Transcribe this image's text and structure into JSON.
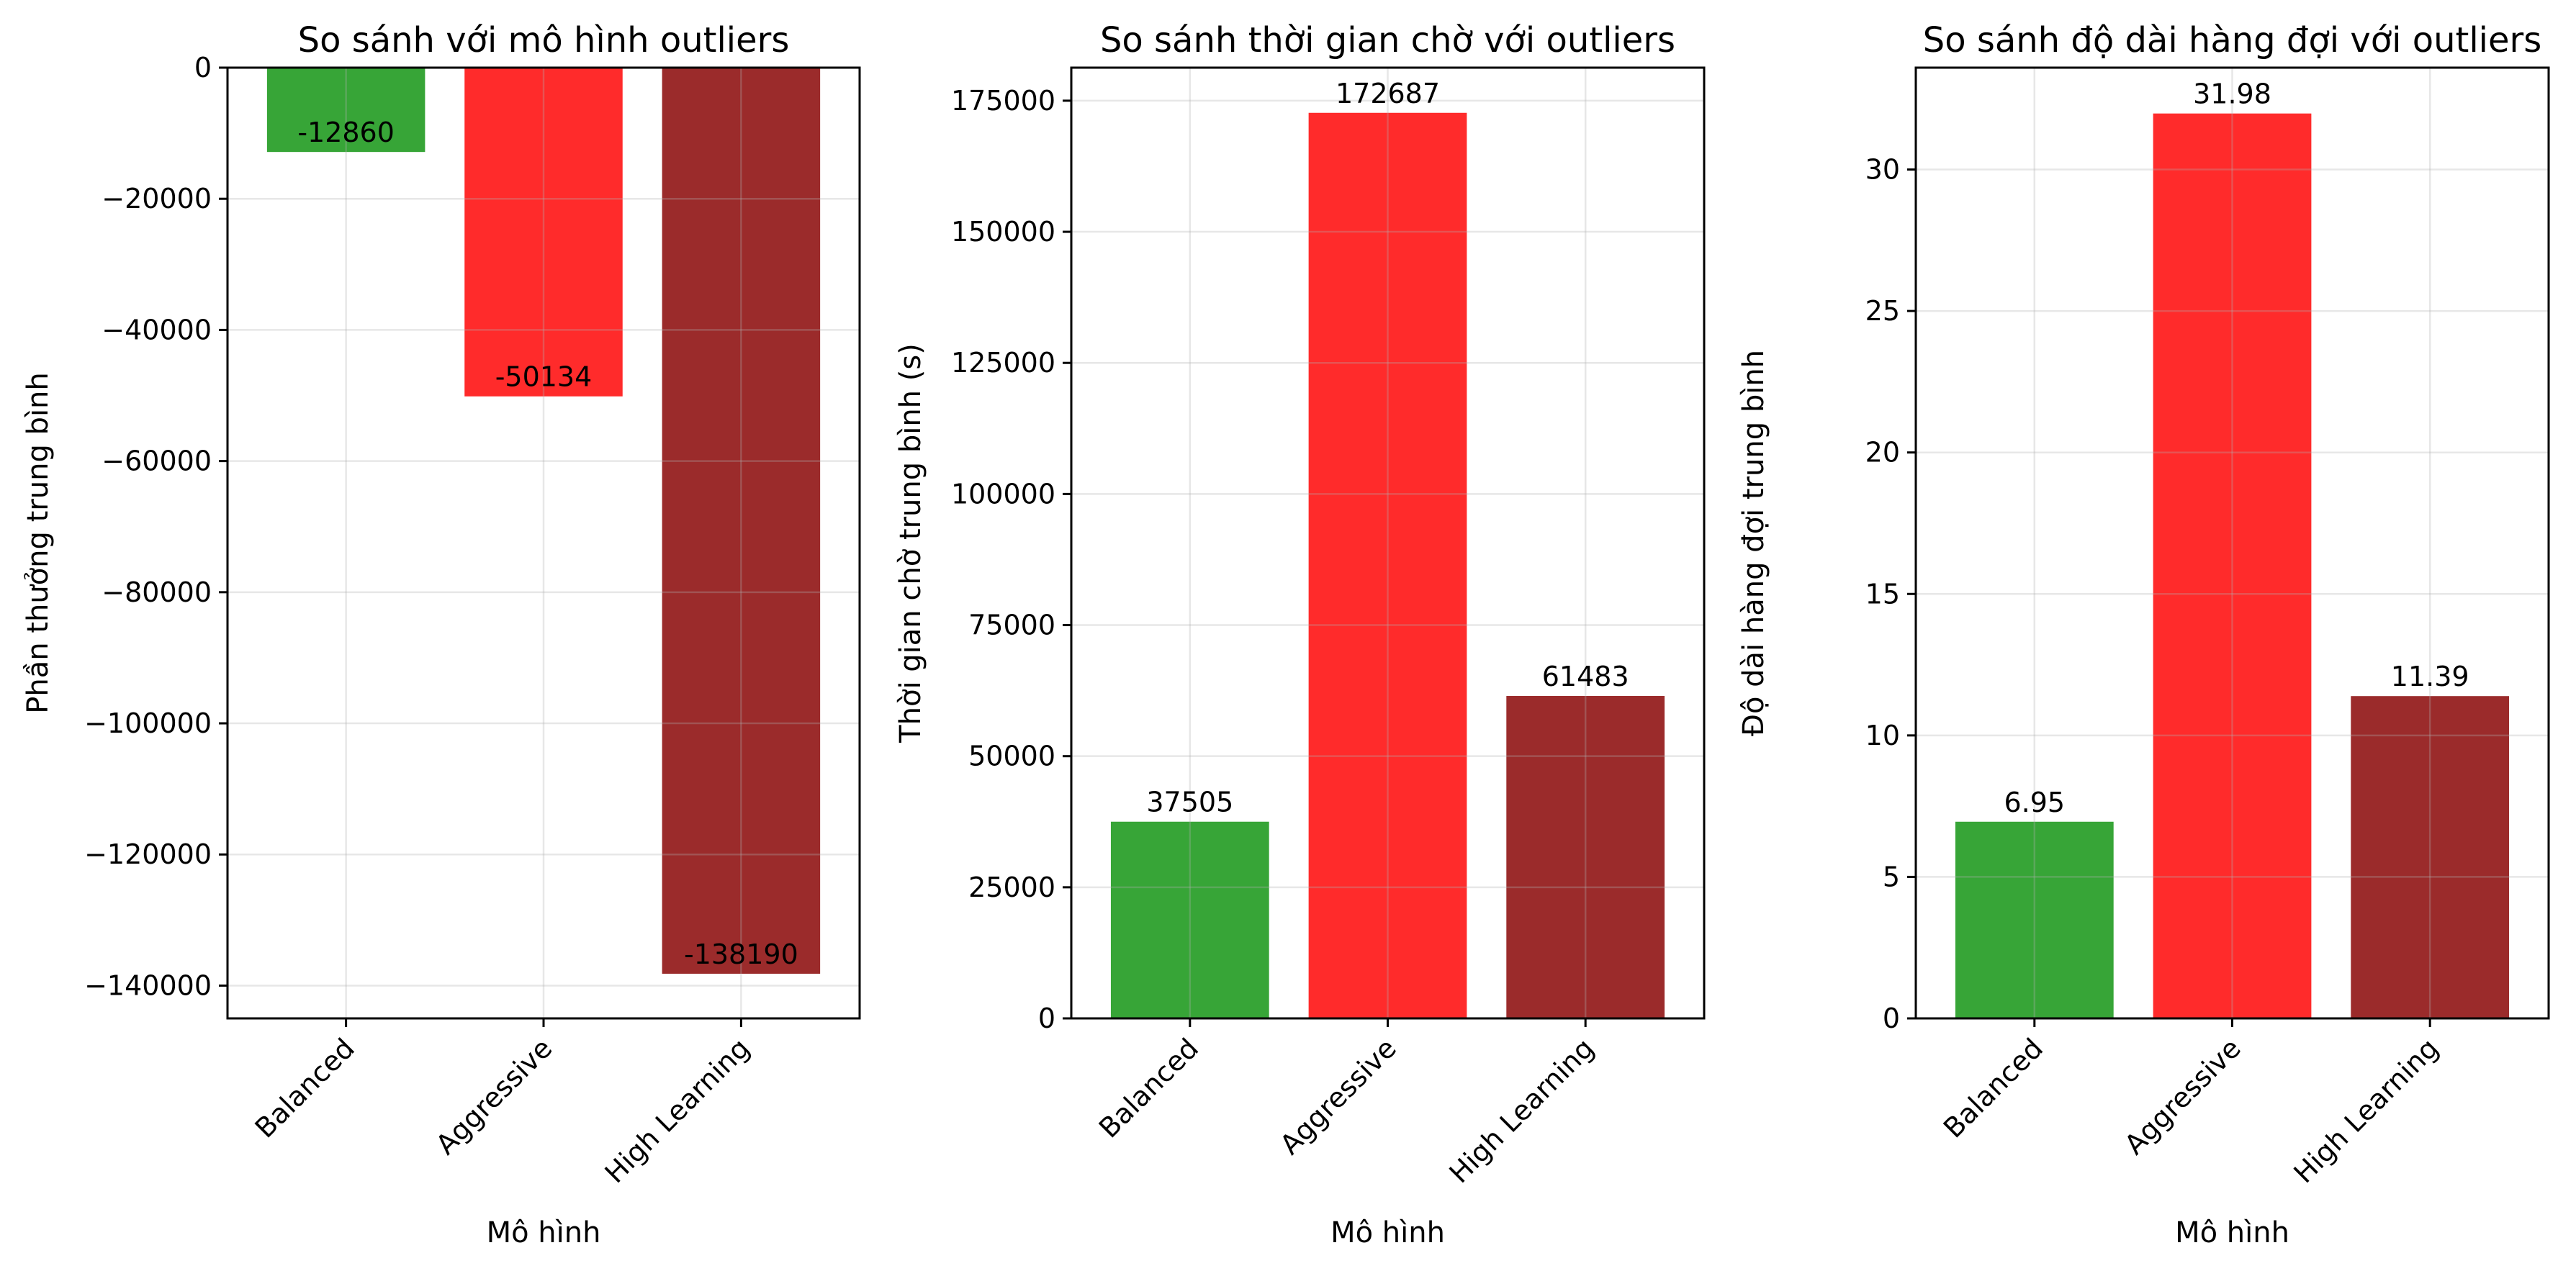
{
  "chart_data": [
    {
      "type": "bar",
      "title": "So sánh với mô hình outliers",
      "xlabel": "Mô hình",
      "ylabel": "Phần thưởng trung bình",
      "categories": [
        "Balanced",
        "Aggressive",
        "High Learning"
      ],
      "values": [
        -12860,
        -50134,
        -138190
      ],
      "value_labels": [
        "-12860",
        "-50134",
        "-138190"
      ],
      "colors": [
        "#2ca02c",
        "#ff2020",
        "#962020"
      ],
      "ylim": [
        -145000,
        0
      ],
      "yticks": [
        0,
        -20000,
        -40000,
        -60000,
        -80000,
        -100000,
        -120000,
        -140000
      ],
      "ytick_labels": [
        "0",
        "−20000",
        "−40000",
        "−60000",
        "−80000",
        "−100000",
        "−120000",
        "−140000"
      ],
      "grid": true
    },
    {
      "type": "bar",
      "title": "So sánh thời gian chờ với outliers",
      "xlabel": "Mô hình",
      "ylabel": "Thời gian chờ trung bình (s)",
      "categories": [
        "Balanced",
        "Aggressive",
        "High Learning"
      ],
      "values": [
        37505,
        172687,
        61483
      ],
      "value_labels": [
        "37505",
        "172687",
        "61483"
      ],
      "colors": [
        "#2ca02c",
        "#ff2020",
        "#962020"
      ],
      "ylim": [
        0,
        181300
      ],
      "yticks": [
        0,
        25000,
        50000,
        75000,
        100000,
        125000,
        150000,
        175000
      ],
      "ytick_labels": [
        "0",
        "25000",
        "50000",
        "75000",
        "100000",
        "125000",
        "150000",
        "175000"
      ],
      "grid": true
    },
    {
      "type": "bar",
      "title": "So sánh độ dài hàng đợi với outliers",
      "xlabel": "Mô hình",
      "ylabel": "Độ dài hàng đợi trung bình",
      "categories": [
        "Balanced",
        "Aggressive",
        "High Learning"
      ],
      "values": [
        6.95,
        31.98,
        11.39
      ],
      "value_labels": [
        "6.95",
        "31.98",
        "11.39"
      ],
      "colors": [
        "#2ca02c",
        "#ff2020",
        "#962020"
      ],
      "ylim": [
        0,
        33.6
      ],
      "yticks": [
        0,
        5,
        10,
        15,
        20,
        25,
        30
      ],
      "ytick_labels": [
        "0",
        "5",
        "10",
        "15",
        "20",
        "25",
        "30"
      ],
      "grid": true
    }
  ]
}
